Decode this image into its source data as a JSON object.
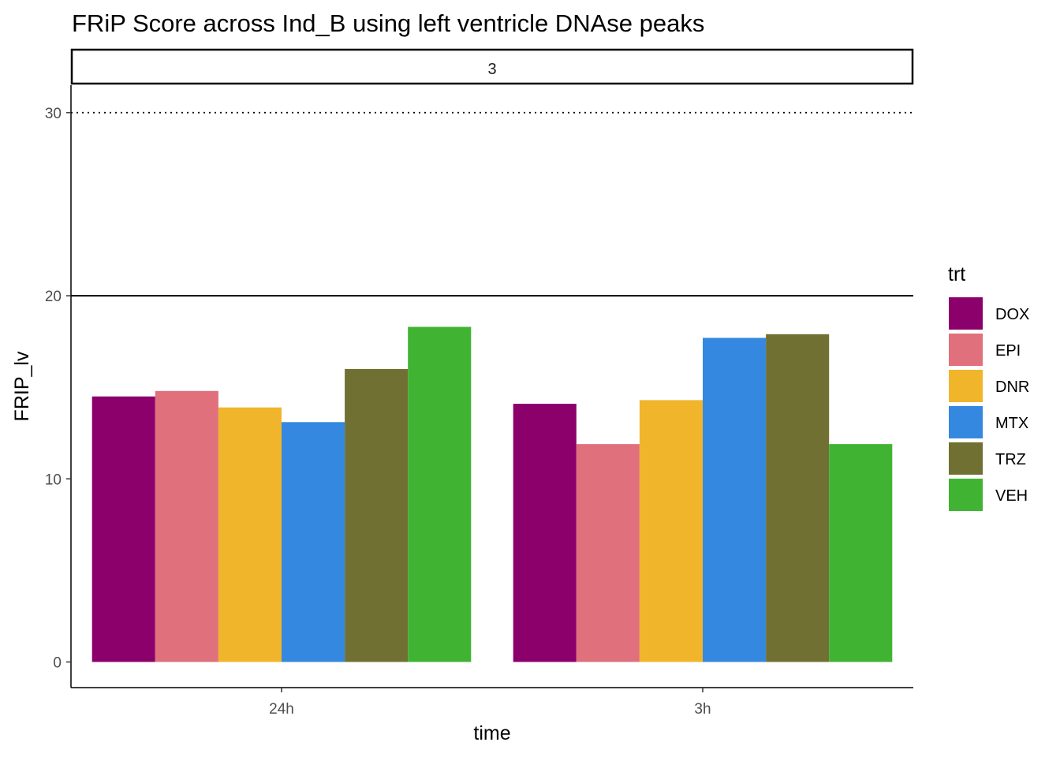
{
  "chart_data": {
    "type": "bar",
    "title": "FRiP Score across Ind_B using left ventricle DNAse peaks",
    "facet_label": "3",
    "xlabel": "time",
    "ylabel": "FRIP_lv",
    "categories": [
      "24h",
      "3h"
    ],
    "ylim": [
      -1.4,
      31.5
    ],
    "yticks": [
      0,
      10,
      20,
      30
    ],
    "ytick_labels": [
      "0",
      "10",
      "20",
      "30"
    ],
    "reference_lines": [
      {
        "value": 20,
        "style": "solid"
      },
      {
        "value": 30,
        "style": "dotted"
      }
    ],
    "grid": false,
    "legend": {
      "title": "trt",
      "position": "right"
    },
    "series": [
      {
        "name": "DOX",
        "color": "#8B006B",
        "values": [
          14.5,
          14.1
        ]
      },
      {
        "name": "EPI",
        "color": "#E0707C",
        "values": [
          14.8,
          11.9
        ]
      },
      {
        "name": "DNR",
        "color": "#F0B52B",
        "values": [
          13.9,
          14.3
        ]
      },
      {
        "name": "MTX",
        "color": "#3588E0",
        "values": [
          13.1,
          17.7
        ]
      },
      {
        "name": "TRZ",
        "color": "#707033",
        "values": [
          16.0,
          17.9
        ]
      },
      {
        "name": "VEH",
        "color": "#41B333",
        "values": [
          18.3,
          11.9
        ]
      }
    ]
  }
}
